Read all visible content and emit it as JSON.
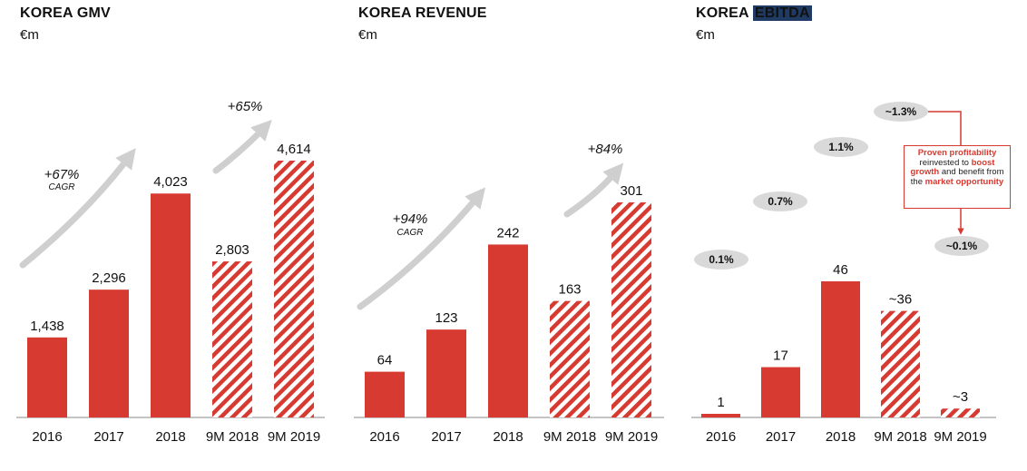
{
  "panels": [
    {
      "title_prefix": "KOREA GMV",
      "title_highlight": "",
      "unit": "€m"
    },
    {
      "title_prefix": "KOREA REVENUE",
      "title_highlight": "",
      "unit": "€m"
    },
    {
      "title_prefix": "KOREA ",
      "title_highlight": "EBITDA",
      "unit": "€m"
    }
  ],
  "callout": {
    "line1": "Proven profitability",
    "line2": "reinvested to",
    "line3": "boost growth",
    "line4": "and benefit from the",
    "line5": "market opportunity"
  },
  "colors": {
    "bar": "#d63a31",
    "stripe": "#d63a31",
    "arrow": "#cfcfcf",
    "pill": "#d9d9d9",
    "axis": "#888888"
  },
  "chart_data": [
    {
      "type": "bar",
      "title": "KOREA GMV",
      "unit": "€m",
      "categories": [
        "2016",
        "2017",
        "2018",
        "9M 2018",
        "9M 2019"
      ],
      "values": [
        1438,
        2296,
        4023,
        2803,
        4614
      ],
      "value_labels": [
        "1,438",
        "2,296",
        "4,023",
        "2,803",
        "4,614"
      ],
      "hatched": [
        false,
        false,
        false,
        true,
        true
      ],
      "annotations": [
        {
          "text": "+67%",
          "sub": "CAGR",
          "over": "2016-2018"
        },
        {
          "text": "+65%",
          "sub": "",
          "over": "9M 2018-9M 2019"
        }
      ]
    },
    {
      "type": "bar",
      "title": "KOREA REVENUE",
      "unit": "€m",
      "categories": [
        "2016",
        "2017",
        "2018",
        "9M 2018",
        "9M 2019"
      ],
      "values": [
        64,
        123,
        242,
        163,
        301
      ],
      "value_labels": [
        "64",
        "123",
        "242",
        "163",
        "301"
      ],
      "hatched": [
        false,
        false,
        false,
        true,
        true
      ],
      "annotations": [
        {
          "text": "+94%",
          "sub": "CAGR",
          "over": "2016-2018"
        },
        {
          "text": "+84%",
          "sub": "",
          "over": "9M 2018-9M 2019"
        }
      ]
    },
    {
      "type": "bar",
      "title": "KOREA EBITDA",
      "unit": "€m",
      "categories": [
        "2016",
        "2017",
        "2018",
        "9M 2018",
        "9M 2019"
      ],
      "values": [
        1,
        17,
        46,
        36,
        3
      ],
      "value_labels": [
        "1",
        "17",
        "46",
        "~36",
        "~3"
      ],
      "hatched": [
        false,
        false,
        false,
        true,
        true
      ],
      "margins": [
        "0.1%",
        "0.7%",
        "1.1%",
        "~1.3%",
        "~0.1%"
      ]
    }
  ]
}
